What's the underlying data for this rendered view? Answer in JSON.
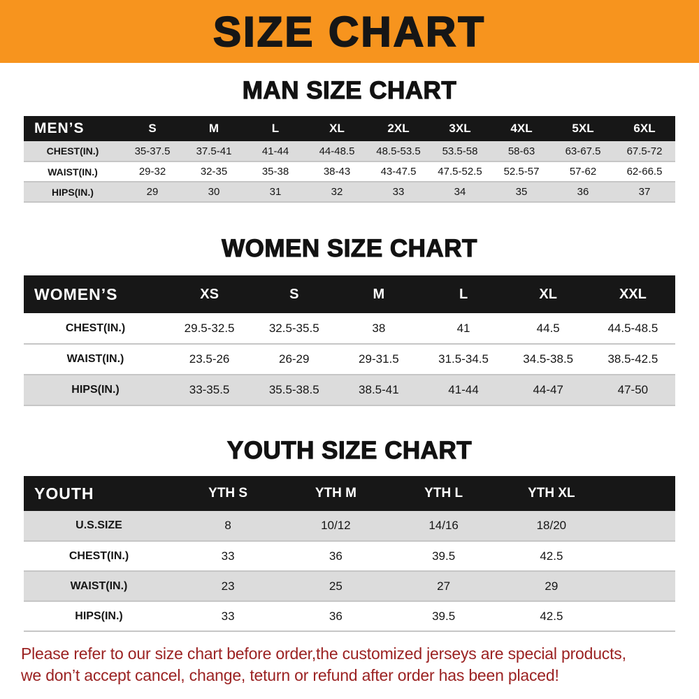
{
  "banner": {
    "title": "SIZE CHART"
  },
  "tables": [
    {
      "id": "men",
      "title": "MAN SIZE CHART",
      "header": [
        "MEN’S",
        "S",
        "M",
        "L",
        "XL",
        "2XL",
        "3XL",
        "4XL",
        "5XL",
        "6XL"
      ],
      "rows": [
        [
          "CHEST(IN.)",
          "35-37.5",
          "37.5-41",
          "41-44",
          "44-48.5",
          "48.5-53.5",
          "53.5-58",
          "58-63",
          "63-67.5",
          "67.5-72"
        ],
        [
          "WAIST(IN.)",
          "29-32",
          "32-35",
          "35-38",
          "38-43",
          "43-47.5",
          "47.5-52.5",
          "52.5-57",
          "57-62",
          "62-66.5"
        ],
        [
          "HIPS(IN.)",
          "29",
          "30",
          "31",
          "32",
          "33",
          "34",
          "35",
          "36",
          "37"
        ]
      ],
      "shaded_rows": [
        0,
        2
      ],
      "trailing_spacer": false
    },
    {
      "id": "women",
      "title": "WOMEN SIZE CHART",
      "header": [
        "WOMEN’S",
        "XS",
        "S",
        "M",
        "L",
        "XL",
        "XXL"
      ],
      "rows": [
        [
          "CHEST(IN.)",
          "29.5-32.5",
          "32.5-35.5",
          "38",
          "41",
          "44.5",
          "44.5-48.5"
        ],
        [
          "WAIST(IN.)",
          "23.5-26",
          "26-29",
          "29-31.5",
          "31.5-34.5",
          "34.5-38.5",
          "38.5-42.5"
        ],
        [
          "HIPS(IN.)",
          "33-35.5",
          "35.5-38.5",
          "38.5-41",
          "41-44",
          "44-47",
          "47-50"
        ]
      ],
      "shaded_rows": [
        2
      ],
      "trailing_spacer": false
    },
    {
      "id": "youth",
      "title": "YOUTH SIZE CHART",
      "header": [
        "YOUTH",
        "YTH S",
        "YTH M",
        "YTH L",
        "YTH XL"
      ],
      "rows": [
        [
          "U.S.SIZE",
          "8",
          "10/12",
          "14/16",
          "18/20"
        ],
        [
          "CHEST(IN.)",
          "33",
          "36",
          "39.5",
          "42.5"
        ],
        [
          "WAIST(IN.)",
          "23",
          "25",
          "27",
          "29"
        ],
        [
          "HIPS(IN.)",
          "33",
          "36",
          "39.5",
          "42.5"
        ]
      ],
      "shaded_rows": [
        0,
        2
      ],
      "trailing_spacer": true
    }
  ],
  "disclaimer": {
    "line1": "Please refer to our size chart before order,the customized jerseys are special products,",
    "line2": "we don’t accept cancel, change, teturn or refund after order has been placed!"
  },
  "colors": {
    "banner_background": "#f7941e",
    "table_header_background": "#171717",
    "table_header_text": "#ffffff",
    "row_shade": "#dcdcdc",
    "disclaimer_text": "#9b2222",
    "title_text": "#161616"
  }
}
